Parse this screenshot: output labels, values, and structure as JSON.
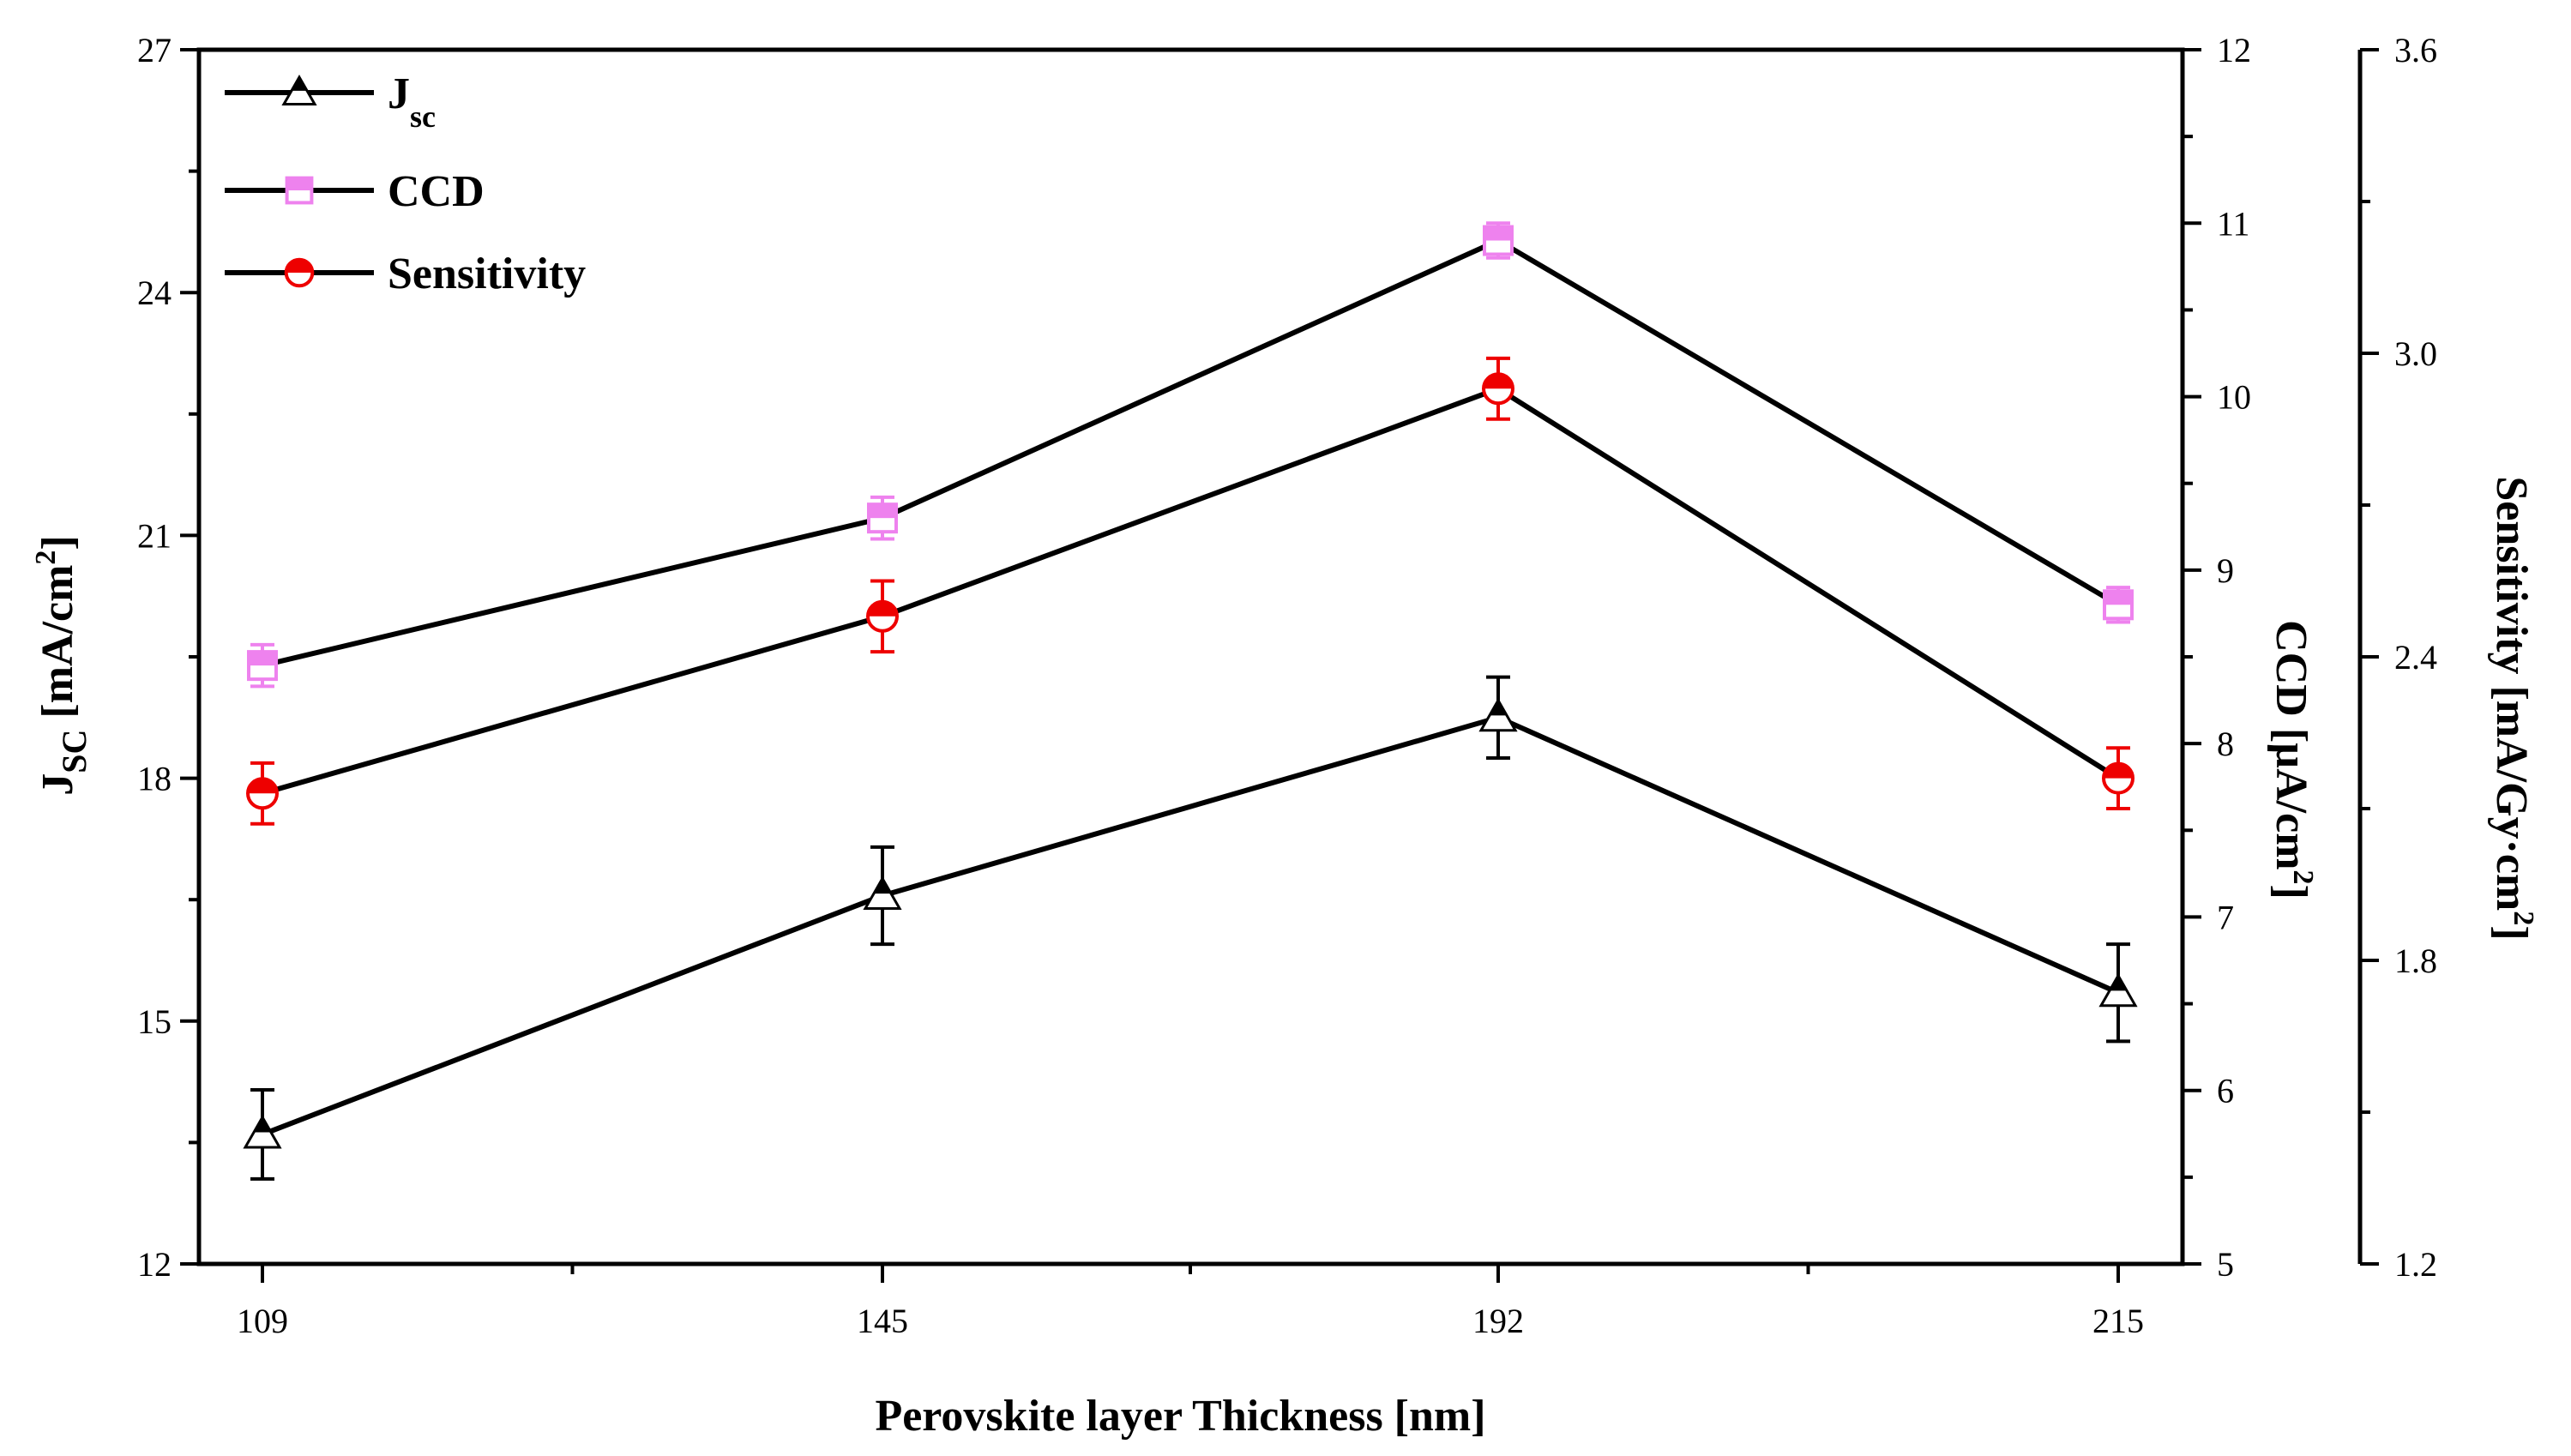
{
  "chart_data": {
    "type": "line",
    "xlabel": "Perovskite layer Thickness [nm]",
    "x": [
      109,
      145,
      192,
      215
    ],
    "x_tick_labels": [
      "109",
      "145",
      "192",
      "215"
    ],
    "axes": {
      "jsc": {
        "label_main": "J",
        "label_sub": "SC",
        "label_unit": " [mA/cm",
        "label_sup": "2",
        "label_close": "]",
        "ylim": [
          12,
          27
        ],
        "ticks": [
          "12",
          "15",
          "18",
          "21",
          "24",
          "27"
        ]
      },
      "ccd": {
        "label_main": "CCD [µA/cm",
        "label_sup": "2",
        "label_close": "]",
        "ylim": [
          5,
          12
        ],
        "ticks": [
          "5",
          "6",
          "7",
          "8",
          "9",
          "10",
          "11",
          "12"
        ]
      },
      "sensitivity": {
        "label_main": "Sensitivity [mA/Gy·cm",
        "label_sup": "2",
        "label_close": "]",
        "ylim": [
          1.2,
          3.6
        ],
        "ticks": [
          "1.2",
          "1.8",
          "2.4",
          "3.0",
          "3.6"
        ]
      }
    },
    "series": [
      {
        "name": "Jsc",
        "legend_main": "J",
        "legend_sub": "SC",
        "axis": "jsc",
        "values": [
          13.6,
          16.55,
          18.75,
          15.35
        ],
        "errors": [
          0.55,
          0.6,
          0.5,
          0.6
        ],
        "marker": "triangle",
        "color": "#000000",
        "error_color": "#000000"
      },
      {
        "name": "CCD",
        "legend_main": "CCD",
        "axis": "ccd",
        "values": [
          8.45,
          9.3,
          10.9,
          8.8
        ],
        "errors": [
          0.12,
          0.12,
          0.1,
          0.1
        ],
        "marker": "square",
        "color": "#ee82ee",
        "error_color": "#ee82ee"
      },
      {
        "name": "Sensitivity",
        "legend_main": "Sensitivity",
        "axis": "sensitivity",
        "values": [
          2.13,
          2.48,
          2.93,
          2.16
        ],
        "errors": [
          0.06,
          0.07,
          0.06,
          0.06
        ],
        "marker": "circle",
        "color": "#ee0000",
        "error_color": "#ee0000"
      }
    ],
    "line_color": "#000000",
    "grid": false,
    "legend_position": "top-left"
  }
}
